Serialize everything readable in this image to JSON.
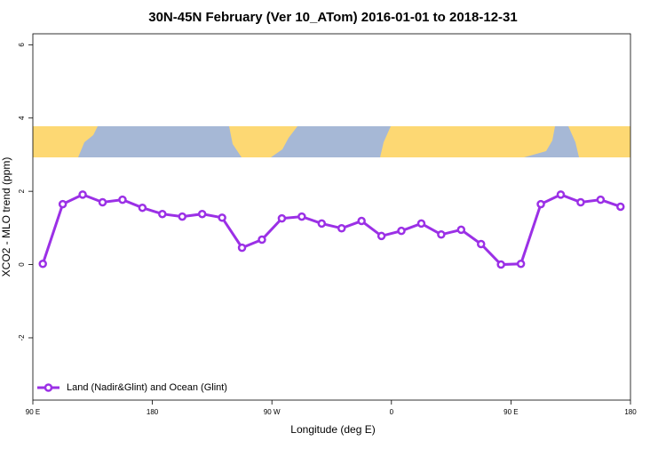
{
  "chart_data": {
    "type": "line",
    "title": "30N-45N February (Ver 10_ATom)   2016-01-01 to 2018-12-31",
    "x_label": "Longitude (deg E)",
    "y_label": "XCO2 - MLO trend (ppm)",
    "x": [
      97.5,
      112.5,
      127.5,
      142.5,
      157.5,
      172.5,
      187.5,
      202.5,
      217.5,
      232.5,
      247.5,
      262.5,
      277.5,
      292.5,
      307.5,
      322.5,
      337.5,
      352.5,
      367.5,
      382.5,
      397.5,
      412.5,
      427.5,
      442.5,
      457.5,
      472.5,
      487.5,
      502.5,
      517.5,
      532.5
    ],
    "series": [
      {
        "name": "Land (Nadir&Glint) and Ocean (Glint)",
        "color": "#9b30e6",
        "values": [
          0.02,
          1.65,
          1.91,
          1.7,
          1.77,
          1.55,
          1.38,
          1.31,
          1.38,
          1.28,
          0.46,
          0.68,
          1.26,
          1.31,
          1.12,
          0.99,
          1.19,
          0.78,
          0.92,
          1.12,
          0.82,
          0.95,
          0.56,
          0.0,
          0.02,
          1.65,
          1.91,
          1.7,
          1.77,
          1.58
        ]
      }
    ],
    "xlim": [
      90,
      540
    ],
    "xticks": [
      {
        "value": 90,
        "label": "90 E"
      },
      {
        "value": 180,
        "label": "180"
      },
      {
        "value": 270,
        "label": "90 W"
      },
      {
        "value": 360,
        "label": "0"
      },
      {
        "value": 450,
        "label": "90 E"
      },
      {
        "value": 540,
        "label": "180"
      }
    ],
    "ylim": [
      -3.7,
      6.3
    ],
    "yticks": [
      -2,
      0,
      2,
      4,
      6
    ],
    "legend": "bottom-left"
  }
}
